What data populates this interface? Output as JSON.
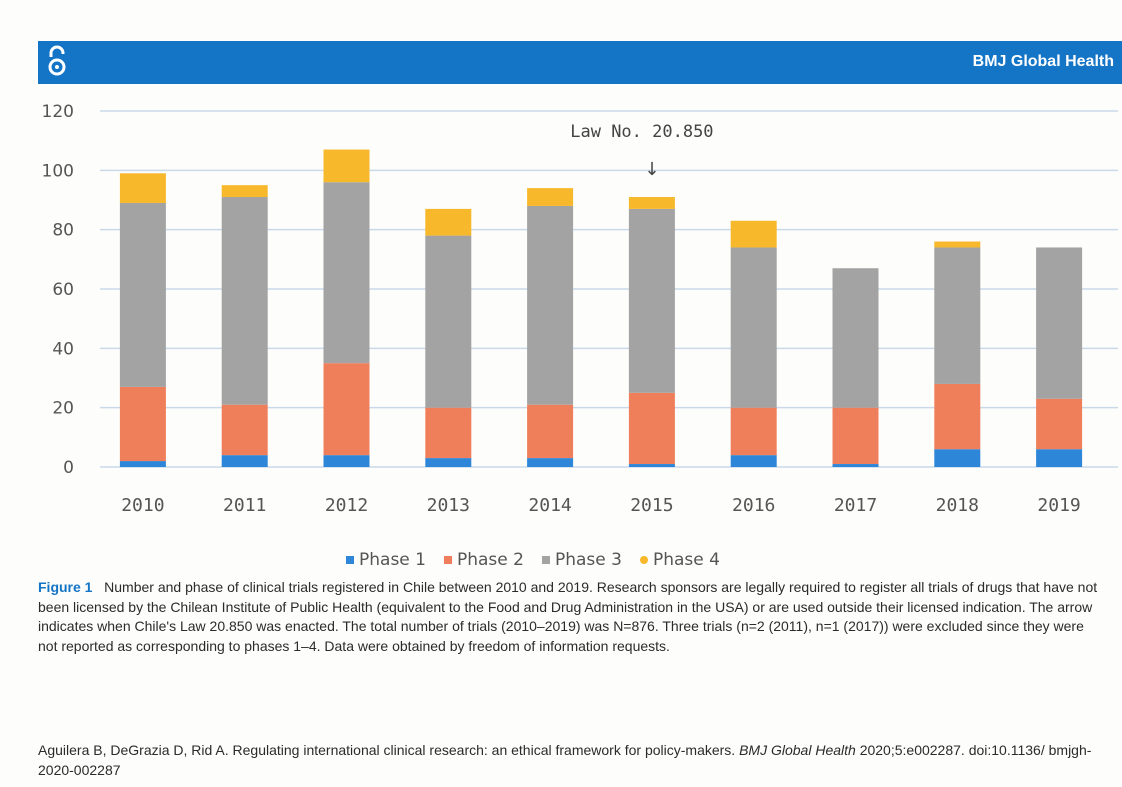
{
  "header": {
    "journal": "BMJ Global Health"
  },
  "chart_data": {
    "type": "bar",
    "stacked": true,
    "categories": [
      "2010",
      "2011",
      "2012",
      "2013",
      "2014",
      "2015",
      "2016",
      "2017",
      "2018",
      "2019"
    ],
    "series": [
      {
        "name": "Phase 1",
        "color": "#2e86d9",
        "values": [
          2,
          4,
          4,
          3,
          3,
          1,
          4,
          1,
          6,
          6
        ]
      },
      {
        "name": "Phase 2",
        "color": "#ef7f5b",
        "values": [
          25,
          17,
          31,
          17,
          18,
          24,
          16,
          19,
          22,
          17
        ]
      },
      {
        "name": "Phase 3",
        "color": "#a3a3a3",
        "values": [
          62,
          70,
          61,
          58,
          67,
          62,
          54,
          47,
          46,
          51
        ]
      },
      {
        "name": "Phase 4",
        "color": "#f7b82b",
        "values": [
          10,
          4,
          11,
          9,
          6,
          4,
          9,
          0,
          2,
          0
        ]
      }
    ],
    "ylim": [
      0,
      120
    ],
    "yticks": [
      0,
      20,
      40,
      60,
      80,
      100,
      120
    ],
    "grid": true,
    "legend_position": "bottom",
    "annotation": {
      "text": "Law No. 20.850",
      "category": "2015",
      "arrow": "↓"
    }
  },
  "legend": [
    "Phase 1",
    "Phase 2",
    "Phase 3",
    "Phase 4"
  ],
  "caption": {
    "label": "Figure 1",
    "text": "Number and phase of clinical trials registered in Chile between 2010 and 2019. Research sponsors are legally required to register all trials of drugs that have not been licensed by the Chilean Institute of Public Health (equivalent to the Food and Drug Administration in the USA) or are used outside their licensed indication. The arrow indicates when Chile's Law 20.850 was enacted. The total number of trials (2010–2019) was N=876. Three trials (n=2 (2011), n=1 (2017)) were excluded since they were not reported as corresponding to phases 1–4. Data were obtained by freedom of information requests."
  },
  "citation": {
    "authors": "Aguilera B, DeGrazia D, Rid A. Regulating international clinical research: an ethical framework for policy-makers.",
    "journal": "BMJ Global Health",
    "details": "2020;5:e002287. doi:10.1136/ bmjgh-2020-002287"
  }
}
